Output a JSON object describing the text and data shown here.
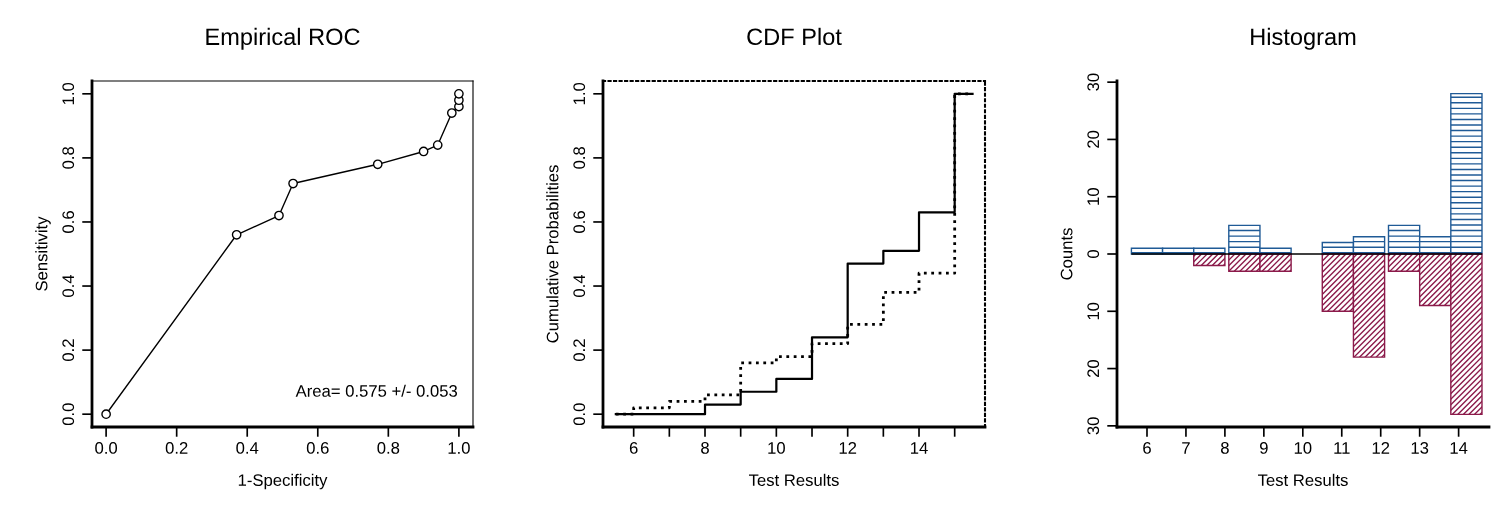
{
  "chart_data": [
    {
      "type": "line",
      "title": "Empirical ROC",
      "xlabel": "1-Specificity",
      "ylabel": "Sensitivity",
      "x": [
        0.0,
        0.37,
        0.49,
        0.53,
        0.77,
        0.9,
        0.94,
        0.98,
        1.0,
        1.0,
        1.0
      ],
      "series": [
        {
          "color": "#000000",
          "values": [
            0.0,
            0.56,
            0.62,
            0.72,
            0.78,
            0.82,
            0.84,
            0.94,
            0.96,
            0.98,
            1.0
          ]
        }
      ],
      "marker": "circle",
      "line_style": "solid",
      "xlim": [
        -0.04,
        1.04
      ],
      "ylim": [
        -0.04,
        1.04
      ],
      "xticks": [
        {
          "value": 0,
          "label": "0.0"
        },
        0.2,
        0.4,
        0.6,
        0.8,
        {
          "value": 1,
          "label": "1.0"
        }
      ],
      "yticks": [
        {
          "value": 0,
          "label": "0.0"
        },
        0.2,
        0.4,
        0.6,
        0.8,
        {
          "value": 1,
          "label": "1.0"
        }
      ],
      "annotations": [
        "Area= 0.575 +/- 0.053"
      ],
      "grid": false,
      "legend": false
    },
    {
      "type": "step",
      "title": "CDF Plot",
      "xlabel": "Test Results",
      "ylabel": "Cumulative Probabilities",
      "x": [
        5.5,
        6,
        7,
        8,
        9,
        10,
        11,
        12,
        13,
        14,
        15,
        15.5
      ],
      "series": [
        {
          "color": "#000000",
          "line_style": "solid",
          "values": [
            0.0,
            0.0,
            0.0,
            0.03,
            0.07,
            0.11,
            0.24,
            0.47,
            0.51,
            0.63,
            1.0,
            1.0
          ]
        },
        {
          "color": "#000000",
          "line_style": "dotted",
          "values": [
            0.0,
            0.02,
            0.04,
            0.06,
            0.16,
            0.18,
            0.22,
            0.28,
            0.38,
            0.44,
            1.0,
            1.0
          ]
        }
      ],
      "xlim": [
        5.14,
        15.85
      ],
      "ylim": [
        -0.04,
        1.04
      ],
      "xticks": [
        6,
        {
          "value": 7,
          "label": null
        },
        8,
        {
          "value": 9,
          "label": null
        },
        10,
        {
          "value": 11,
          "label": null
        },
        12,
        {
          "value": 13,
          "label": null
        },
        14,
        {
          "value": 15,
          "label": null
        }
      ],
      "yticks": [
        {
          "value": 0,
          "label": "0.0"
        },
        0.2,
        0.4,
        0.6,
        0.8,
        {
          "value": 1,
          "label": "1.0"
        }
      ],
      "grid": false,
      "legend": false
    },
    {
      "type": "bar",
      "title": "Histogram",
      "xlabel": "Test Results",
      "ylabel": "Counts",
      "stacked": true,
      "x": [
        6.0,
        6.8,
        7.6,
        8.5,
        9.3,
        10.1,
        10.9,
        11.7,
        12.6,
        13.4,
        14.2
      ],
      "series": [
        {
          "color": "#1f5a96",
          "values": [
            1,
            1,
            1,
            5,
            1,
            0,
            2,
            3,
            5,
            3,
            28
          ]
        },
        {
          "color": "#8b1a4a",
          "values": [
            0,
            0,
            -2,
            -3,
            -3,
            0,
            -10,
            -18,
            -3,
            -9,
            -28
          ]
        }
      ],
      "ref_lines": [
        {
          "axis": "y",
          "value": 0,
          "color": "#000000"
        }
      ],
      "xlim": [
        5.23,
        14.78
      ],
      "ylim": [
        -30.2,
        30.2
      ],
      "xticks": [
        6,
        7,
        8,
        9,
        10,
        11,
        12,
        13,
        14
      ],
      "yticks": [
        {
          "value": -30,
          "label": "30"
        },
        {
          "value": -20,
          "label": "20"
        },
        {
          "value": -10,
          "label": "10"
        },
        0,
        10,
        20,
        30
      ],
      "grid": false,
      "legend": false
    }
  ]
}
